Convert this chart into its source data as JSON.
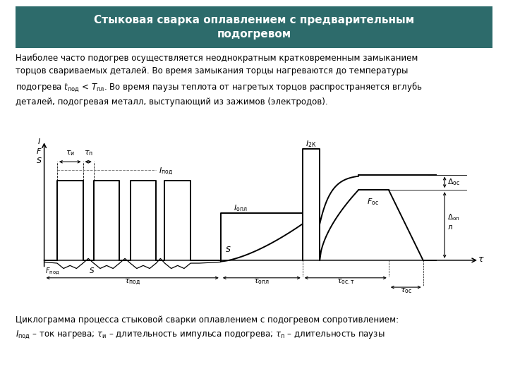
{
  "title": "Стыковая сварка оплавлением с предварительным\nподогревом",
  "title_bg": "#2d6b6b",
  "title_color": "white",
  "body_text": "Наиболее часто подогрев осуществляется неоднократным кратковременным замыканием\nторцов свариваемых деталей. Во время замыкания торцы нагреваются до температуры\nподогрева $t_{\\mathregular{под}}$ < $T_{\\mathregular{пл}}$. Во время паузы теплота от нагретых торцов распространяется вглубь\nдеталей, подогревая металл, выступающий из зажимов (электродов).",
  "caption_line1": "Циклограмма процесса стыковой сварки оплавлением с подогревом сопротивлением:",
  "caption_line2": "$I_{\\mathregular{под}}$ – ток нагрева; $\\tau_{\\mathregular{и}}$ – длительность импульса подогрева; $\\tau_{\\mathregular{п}}$ – длительность паузы",
  "bg_color": "#ffffff"
}
